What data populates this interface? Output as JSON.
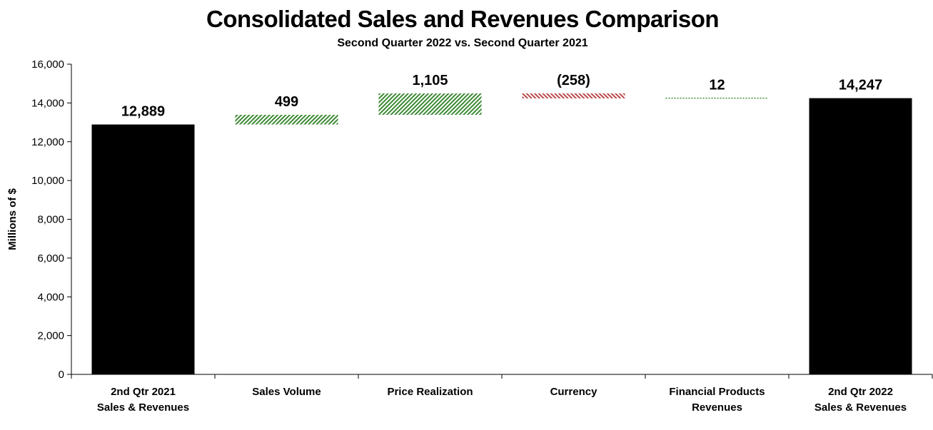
{
  "chart_data": {
    "type": "waterfall",
    "title": "Consolidated Sales and Revenues Comparison",
    "subtitle": "Second Quarter 2022 vs. Second Quarter 2021",
    "ylabel": "Millions of $",
    "xlabel": "",
    "ylim": [
      0,
      16000
    ],
    "yticks": [
      0,
      2000,
      4000,
      6000,
      8000,
      10000,
      12000,
      14000,
      16000
    ],
    "ytick_labels": [
      "0",
      "2,000",
      "4,000",
      "6,000",
      "8,000",
      "10,000",
      "12,000",
      "14,000",
      "16,000"
    ],
    "grid": false,
    "legend": "none",
    "bars": [
      {
        "category": [
          "2nd Qtr 2021",
          "Sales & Revenues"
        ],
        "kind": "total",
        "value": 12889,
        "label": "12,889",
        "color": "#000000"
      },
      {
        "category": [
          "Sales Volume"
        ],
        "kind": "change",
        "value": 499,
        "label": "499",
        "color": "#3e8a35"
      },
      {
        "category": [
          "Price Realization"
        ],
        "kind": "change",
        "value": 1105,
        "label": "1,105",
        "color": "#3e8a35"
      },
      {
        "category": [
          "Currency"
        ],
        "kind": "change",
        "value": -258,
        "label": "(258)",
        "color": "#b94a48"
      },
      {
        "category": [
          "Financial Products",
          "Revenues"
        ],
        "kind": "change",
        "value": 12,
        "label": "12",
        "color": "#3e8a35"
      },
      {
        "category": [
          "2nd Qtr 2022",
          "Sales & Revenues"
        ],
        "kind": "total",
        "value": 14247,
        "label": "14,247",
        "color": "#000000"
      }
    ]
  }
}
